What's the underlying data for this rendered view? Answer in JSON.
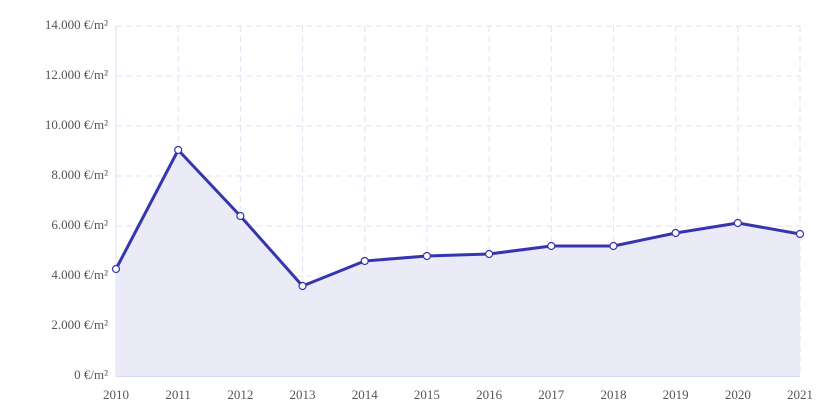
{
  "chart_data": {
    "type": "area-line",
    "x": [
      2010,
      2011,
      2012,
      2013,
      2014,
      2015,
      2016,
      2017,
      2018,
      2019,
      2020,
      2021
    ],
    "values": [
      4280,
      9040,
      6400,
      3600,
      4600,
      4800,
      4880,
      5200,
      5200,
      5720,
      6120,
      5680
    ],
    "color": "#3535b0",
    "area_color": "#ebebf8",
    "marker_fill": "#ffffff",
    "xlim": [
      2010,
      2021
    ],
    "xticks": [
      2010,
      2011,
      2012,
      2013,
      2014,
      2015,
      2016,
      2017,
      2018,
      2019,
      2020,
      2021
    ],
    "ylim": [
      0,
      14000
    ],
    "yticks": [
      {
        "value": 0,
        "label": "0 €/m²"
      },
      {
        "value": 2000,
        "label": "2.000 €/m²"
      },
      {
        "value": 4000,
        "label": "4.000 €/m²"
      },
      {
        "value": 6000,
        "label": "6.000 €/m²"
      },
      {
        "value": 8000,
        "label": "8.000 €/m²"
      },
      {
        "value": 10000,
        "label": "10.000 €/m²"
      },
      {
        "value": 12000,
        "label": "12.000 €/m²"
      },
      {
        "value": 14000,
        "label": "14.000 €/m²"
      }
    ],
    "grid": true
  }
}
